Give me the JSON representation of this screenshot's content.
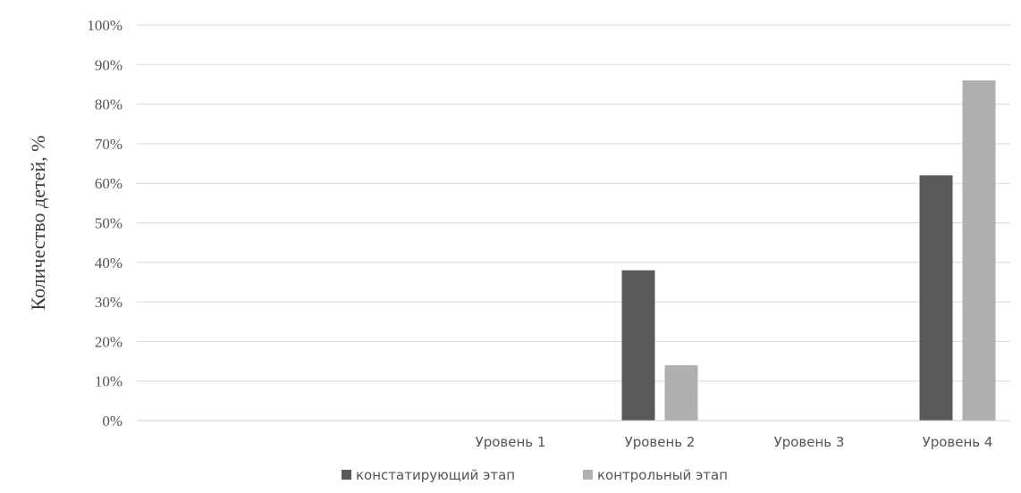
{
  "chart_data": {
    "type": "bar",
    "title": "",
    "xlabel": "",
    "ylabel": "Количество детей, %",
    "categories": [
      "Уровень 1",
      "Уровень 2",
      "Уровень 3",
      "Уровень 4"
    ],
    "series": [
      {
        "name": "констатирующий этап",
        "values": [
          0,
          38,
          0,
          62
        ],
        "color": "#595959"
      },
      {
        "name": "контрольный этап",
        "values": [
          0,
          14,
          0,
          86
        ],
        "color": "#b0b0b0"
      }
    ],
    "ylim": [
      0,
      100
    ],
    "yticks": [
      0,
      10,
      20,
      30,
      40,
      50,
      60,
      70,
      80,
      90,
      100
    ],
    "ytick_labels": [
      "0%",
      "10%",
      "20%",
      "30%",
      "40%",
      "50%",
      "60%",
      "70%",
      "80%",
      "90%",
      "100%"
    ],
    "grid": true,
    "legend_position": "bottom"
  }
}
